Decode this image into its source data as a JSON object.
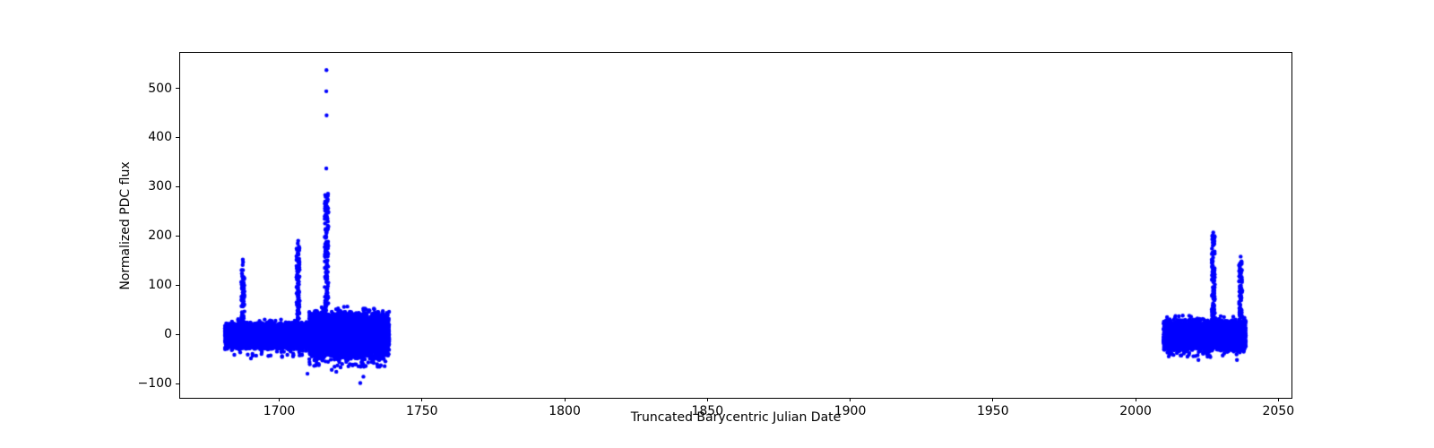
{
  "chart_data": {
    "type": "scatter",
    "title": "",
    "xlabel": "Truncated Barycentric Julian Date",
    "ylabel": "Normalized PDC flux",
    "legend": null,
    "grid": false,
    "xlim": [
      1665.3,
      2054.6
    ],
    "ylim": [
      -129,
      572
    ],
    "x_ticks": [
      1700,
      1750,
      1800,
      1850,
      1900,
      1950,
      2000,
      2050
    ],
    "x_tick_labels": [
      "1700",
      "1750",
      "1800",
      "1850",
      "1900",
      "1950",
      "2000",
      "2050"
    ],
    "y_ticks": [
      -100,
      0,
      100,
      200,
      300,
      400,
      500
    ],
    "y_tick_labels": [
      "−100",
      "0",
      "100",
      "200",
      "300",
      "400",
      "500"
    ],
    "colors": {
      "marker": "#0000ff",
      "text": "#000000",
      "spine": "#000000",
      "background": "#ffffff"
    },
    "marker": {
      "shape": "circle",
      "color": "#0000ff",
      "radius_px": 2.2
    },
    "seed": 42,
    "clusters": [
      {
        "x_range": [
          1681.0,
          1710.5
        ],
        "n": 4200,
        "y_center": -3,
        "y_halfwidth": 29,
        "fringe_below_n": 24,
        "fringe_below_ext": 13,
        "fringe_above_n": 10,
        "fringe_above_ext": 5
      },
      {
        "x_range": [
          1710.5,
          1738.5
        ],
        "n": 4200,
        "y_center": -2,
        "y_halfwidth": 52,
        "fringe_below_n": 30,
        "fringe_below_ext": 12,
        "fringe_above_n": 12,
        "fringe_above_ext": 7
      },
      {
        "x_range": [
          2009.8,
          2038.6
        ],
        "n": 3600,
        "y_center": -2,
        "y_halfwidth": 35,
        "fringe_below_n": 22,
        "fringe_below_ext": 11,
        "fringe_above_n": 10,
        "fringe_above_ext": 5
      }
    ],
    "spikes": [
      {
        "x": 1687.3,
        "x_jitter": 0.55,
        "y_base": 0,
        "y_top": 133,
        "n": 80
      },
      {
        "x": 1706.6,
        "x_jitter": 0.55,
        "y_base": 0,
        "y_top": 179,
        "n": 105
      },
      {
        "x": 1716.6,
        "x_jitter": 0.65,
        "y_base": 0,
        "y_top": 286,
        "n": 165
      },
      {
        "x": 2027.2,
        "x_jitter": 0.55,
        "y_base": 0,
        "y_top": 201,
        "n": 115
      },
      {
        "x": 2036.8,
        "x_jitter": 0.55,
        "y_base": 0,
        "y_top": 151,
        "n": 90
      }
    ],
    "cap_points": [
      [
        1687.2,
        141
      ],
      [
        1687.35,
        147
      ],
      [
        1687.25,
        152
      ],
      [
        1706.5,
        184.5
      ],
      [
        1706.65,
        190
      ],
      [
        1716.5,
        337
      ],
      [
        1716.6,
        445
      ],
      [
        1716.5,
        494
      ],
      [
        1716.55,
        537
      ],
      [
        2027.2,
        207
      ],
      [
        2036.8,
        158
      ]
    ],
    "outliers": [
      [
        1690.1,
        -49
      ],
      [
        1693.8,
        -40
      ],
      [
        1697.0,
        -43
      ],
      [
        1701.0,
        -46
      ],
      [
        1705.0,
        -42
      ],
      [
        1709.9,
        -80
      ],
      [
        1713.1,
        -58
      ],
      [
        1716.2,
        -55
      ],
      [
        1718.4,
        -72
      ],
      [
        1720.0,
        -76
      ],
      [
        1721.5,
        -67
      ],
      [
        1723.5,
        -56
      ],
      [
        1726.9,
        -61
      ],
      [
        1728.4,
        -99
      ],
      [
        1729.5,
        -86
      ],
      [
        1733.1,
        -58
      ],
      [
        1735.6,
        -63
      ],
      [
        1737.2,
        -55
      ],
      [
        2011.6,
        -45
      ],
      [
        2016.0,
        -43
      ],
      [
        2022.0,
        -52
      ],
      [
        2026.0,
        -44
      ],
      [
        2030.5,
        -43
      ],
      [
        2035.5,
        -52
      ],
      [
        2029.8,
        37
      ],
      [
        2023.9,
        30
      ],
      [
        2013.8,
        34
      ]
    ]
  }
}
